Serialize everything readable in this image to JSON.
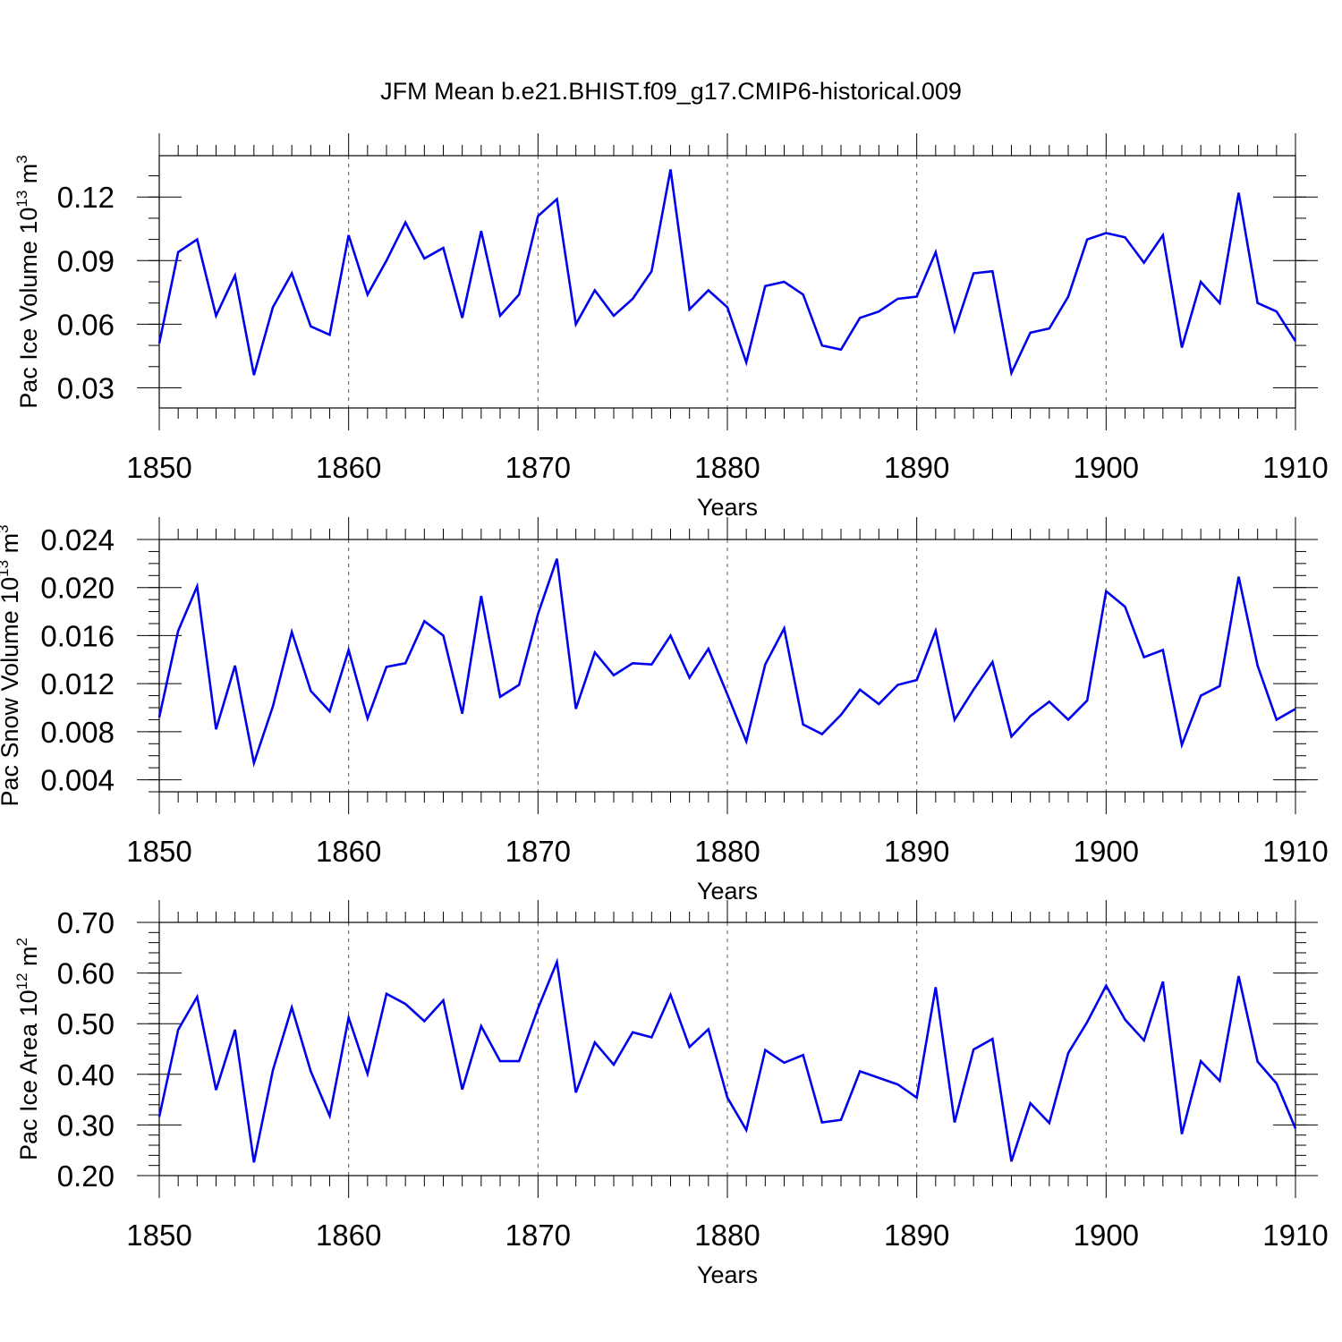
{
  "title": "JFM Mean b.e21.BHIST.f09_g17.CMIP6-historical.009",
  "colors": {
    "line": "#0000ee",
    "axis": "#000000",
    "grid": "#555555"
  },
  "chart_data": [
    {
      "type": "line",
      "ylabel": "Pac Ice Volume 10",
      "ylabel_exponent": "13",
      "ylabel_unit": " m",
      "ylabel_unit_exponent": "3",
      "xlabel": "Years",
      "xlim": [
        1850,
        1910
      ],
      "ylim": [
        0.0205,
        0.1395
      ],
      "yticks": [
        0.03,
        0.06,
        0.09,
        0.12
      ],
      "yticklabels": [
        "0.03",
        "0.06",
        "0.09",
        "0.12"
      ],
      "yminor": 0.01,
      "xticks": [
        1850,
        1860,
        1870,
        1880,
        1890,
        1900,
        1910
      ],
      "xticklabels": [
        "1850",
        "1860",
        "1870",
        "1880",
        "1890",
        "1900",
        "1910"
      ],
      "series": [
        {
          "name": "Pac Ice Volume",
          "x_start": 1850,
          "values": [
            0.051,
            0.094,
            0.1,
            0.064,
            0.083,
            0.036,
            0.068,
            0.084,
            0.059,
            0.055,
            0.102,
            0.074,
            0.09,
            0.108,
            0.091,
            0.096,
            0.063,
            0.104,
            0.064,
            0.074,
            0.111,
            0.119,
            0.06,
            0.076,
            0.064,
            0.072,
            0.085,
            0.133,
            0.067,
            0.076,
            0.068,
            0.042,
            0.078,
            0.08,
            0.074,
            0.05,
            0.048,
            0.063,
            0.066,
            0.072,
            0.073,
            0.094,
            0.057,
            0.084,
            0.085,
            0.037,
            0.056,
            0.058,
            0.073,
            0.1,
            0.103,
            0.101,
            0.089,
            0.102,
            0.049,
            0.08,
            0.07,
            0.122,
            0.07,
            0.066,
            0.052
          ]
        }
      ]
    },
    {
      "type": "line",
      "ylabel": "Pac Snow Volume 10",
      "ylabel_exponent": "13",
      "ylabel_unit": " m",
      "ylabel_unit_exponent": "3",
      "xlabel": "Years",
      "xlim": [
        1850,
        1910
      ],
      "ylim": [
        0.003,
        0.024
      ],
      "yticks": [
        0.004,
        0.008,
        0.012,
        0.016,
        0.02,
        0.024
      ],
      "yticklabels": [
        "0.004",
        "0.008",
        "0.012",
        "0.016",
        "0.020",
        "0.024"
      ],
      "yminor": 0.001,
      "xticks": [
        1850,
        1860,
        1870,
        1880,
        1890,
        1900,
        1910
      ],
      "xticklabels": [
        "1850",
        "1860",
        "1870",
        "1880",
        "1890",
        "1900",
        "1910"
      ],
      "series": [
        {
          "name": "Pac Snow Volume",
          "x_start": 1850,
          "values": [
            0.0092,
            0.0164,
            0.0201,
            0.0082,
            0.0135,
            0.0054,
            0.0101,
            0.0163,
            0.0114,
            0.0097,
            0.0148,
            0.0091,
            0.0134,
            0.0137,
            0.0172,
            0.016,
            0.0095,
            0.0193,
            0.0109,
            0.0119,
            0.0178,
            0.0224,
            0.0099,
            0.0146,
            0.0127,
            0.0137,
            0.0136,
            0.016,
            0.0125,
            0.0149,
            0.0111,
            0.0072,
            0.0136,
            0.0166,
            0.0086,
            0.0078,
            0.0094,
            0.0115,
            0.0103,
            0.0119,
            0.0123,
            0.0164,
            0.009,
            0.0115,
            0.0138,
            0.0076,
            0.0093,
            0.0105,
            0.009,
            0.0106,
            0.0197,
            0.0184,
            0.0142,
            0.0148,
            0.0069,
            0.011,
            0.0118,
            0.0209,
            0.0135,
            0.009,
            0.0099
          ]
        }
      ]
    },
    {
      "type": "line",
      "ylabel": "Pac Ice Area 10",
      "ylabel_exponent": "12",
      "ylabel_unit": " m",
      "ylabel_unit_exponent": "2",
      "xlabel": "Years",
      "xlim": [
        1850,
        1910
      ],
      "ylim": [
        0.2,
        0.7
      ],
      "yticks": [
        0.2,
        0.3,
        0.4,
        0.5,
        0.6,
        0.7
      ],
      "yticklabels": [
        "0.20",
        "0.30",
        "0.40",
        "0.50",
        "0.60",
        "0.70"
      ],
      "yminor": 0.02,
      "xticks": [
        1850,
        1860,
        1870,
        1880,
        1890,
        1900,
        1910
      ],
      "xticklabels": [
        "1850",
        "1860",
        "1870",
        "1880",
        "1890",
        "1900",
        "1910"
      ],
      "series": [
        {
          "name": "Pac Ice Area",
          "x_start": 1850,
          "values": [
            0.316,
            0.488,
            0.553,
            0.369,
            0.488,
            0.226,
            0.408,
            0.532,
            0.406,
            0.318,
            0.512,
            0.401,
            0.559,
            0.539,
            0.505,
            0.546,
            0.37,
            0.495,
            0.426,
            0.426,
            0.53,
            0.622,
            0.364,
            0.463,
            0.419,
            0.483,
            0.473,
            0.557,
            0.454,
            0.489,
            0.354,
            0.29,
            0.448,
            0.423,
            0.438,
            0.305,
            0.31,
            0.406,
            0.393,
            0.38,
            0.354,
            0.572,
            0.305,
            0.449,
            0.47,
            0.228,
            0.343,
            0.304,
            0.442,
            0.503,
            0.575,
            0.508,
            0.467,
            0.583,
            0.282,
            0.426,
            0.387,
            0.594,
            0.425,
            0.382,
            0.293
          ]
        }
      ]
    }
  ]
}
